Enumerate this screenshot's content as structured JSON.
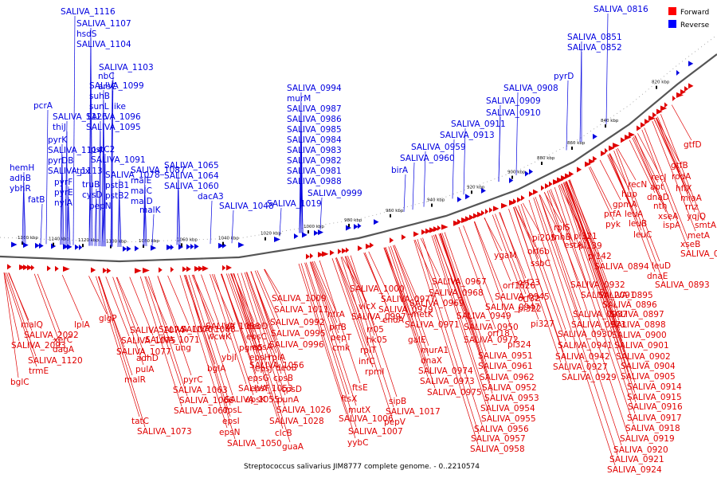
{
  "caption": "Streptococcus salivarius JIM8777 complete genome. - 0..2210574",
  "legend": [
    {
      "label": "Forward",
      "color": "#ff0000"
    },
    {
      "label": "Reverse",
      "color": "#0000ff"
    }
  ],
  "colors": {
    "forward": "#e00000",
    "reverse": "#0000e0",
    "backbone": "#555555"
  },
  "ticks": [
    "1160 kbp",
    "1140 kbp",
    "1120 kbp",
    "1100 kbp",
    "1080 kbp",
    "1060 kbp",
    "1040 kbp",
    "1020 kbp",
    "1000 kbp",
    "980 kbp",
    "960 kbp",
    "940 kbp",
    "920 kbp",
    "900 kbp",
    "880 kbp",
    "860 kbp",
    "840 kbp",
    "820 kbp"
  ],
  "reverse_labels": [
    "SALIVA_0816",
    "SALIVA_0851",
    "SALIVA_0852",
    "pyrD",
    "SALIVA_0908",
    "SALIVA_0909",
    "SALIVA_0910",
    "SALIVA_0911",
    "SALIVA_0913",
    "SALIVA_0959",
    "SALIVA_0960",
    "birA",
    "SALIVA_0994",
    "murM",
    "SALIVA_0987",
    "SALIVA_0986",
    "SALIVA_0985",
    "SALIVA_0984",
    "SALIVA_0983",
    "SALIVA_0982",
    "SALIVA_0981",
    "SALIVA_0988",
    "SALIVA_0999",
    "SALIVA_1019",
    "SALIVA_1048",
    "SALIVA_1065",
    "SALIVA_1064",
    "SALIVA_1060",
    "dacA3",
    "SALIVA_1116",
    "SALIVA_1107",
    "hsdS",
    "SALIVA_1104",
    "SALIVA_1103",
    "nbC",
    "arsC",
    "SALIVA_1099",
    "suhB",
    "sunL like",
    "SALIVA_1096",
    "SALIVA_1095",
    "pstC2",
    "SALIVA_1091",
    "SALIVA_1087",
    "malE",
    "malC",
    "malD",
    "malK",
    "SALIVA_1078",
    "pstB1",
    "pstB2",
    "pepN",
    "truB",
    "cysD",
    "tpx",
    "pcrA",
    "SALIVA_1126",
    "thiJ",
    "pyrK",
    "SALIVA_1114",
    "pyrDB",
    "SALIVA_1113",
    "pyrF",
    "pyrE",
    "nylA",
    "hemH",
    "adhB",
    "ybhR",
    "fatB"
  ],
  "forward_labels": [
    "gtfD",
    "gtfB",
    "rodA",
    "hflX",
    "miaA",
    "rnz",
    "yqjQ",
    "smtA",
    "metA",
    "xseB",
    "recJ",
    "apt",
    "dnaD",
    "nth",
    "xseA",
    "ispA",
    "SALIVA_0887",
    "recN",
    "hup",
    "gpmA",
    "leuA",
    "leuB",
    "leuC",
    "leuD",
    "dnaE",
    "SALIVA_0893",
    "prfA",
    "pyk",
    "estA",
    "rnhB",
    "rplS",
    "pi205",
    "orf6b",
    "ssbC",
    "ygaM",
    "orf23",
    "orf32",
    "pi322",
    "pi321",
    "pi139",
    "pi142",
    "SALIVA_0894",
    "SALIVA_0895",
    "SALIVA_0896",
    "SALIVA_0897",
    "SALIVA_0898",
    "SALIVA_0900",
    "SALIVA_0901",
    "SALIVA_0902",
    "SALIVA_0904",
    "SALIVA_0905",
    "SALIVA_0914",
    "SALIVA_0915",
    "SALIVA_0916",
    "SALIVA_0917",
    "SALIVA_0918",
    "SALIVA_0919",
    "SALIVA_0920",
    "SALIVA_0921",
    "SALIVA_0924",
    "SALIVA_0932",
    "SALIVA_2091",
    "SALIVA_0937",
    "SALIVA_0923",
    "SALIVA_0927",
    "SALIVA_0929",
    "SALIVA_0930",
    "SALIVA_0941",
    "SALIVA_0942",
    "orf18",
    "pi327",
    "pi324",
    "orf1626",
    "SALIVA_0945",
    "SALIVA_0947",
    "SALIVA_0949",
    "SALIVA_0950",
    "SALIVA_0951",
    "SALIVA_0961",
    "SALIVA_0962",
    "SALIVA_0952",
    "SALIVA_0953",
    "SALIVA_0954",
    "SALIVA_0955",
    "SALIVA_0956",
    "SALIVA_0957",
    "SALIVA_0958",
    "SALIVA_0967",
    "SALIVA_0968",
    "SALIVA_0969",
    "metK",
    "SALIVA_0971",
    "SALIVA_0972",
    "galE",
    "murA1",
    "dnaX",
    "SALIVA_0974",
    "SALIVA_0973",
    "SALIVA_0975",
    "SALIVA_0977",
    "SALIVA_0979",
    "endA",
    "rr05",
    "hk05",
    "vicX",
    "SALIVA_0997",
    "SALIVA_1000",
    "nfrA",
    "prfB",
    "pepT",
    "cmk",
    "rplT",
    "infC",
    "rpmI",
    "ftsE",
    "ftsX",
    "mutX",
    "SALIVA_1006",
    "SALIVA_1007",
    "yybC",
    "sipB",
    "SALIVA_1017",
    "pepV",
    "SALIVA_1009",
    "SALIVA_1011",
    "SALIVA_0992",
    "SALIVA_0995",
    "SALIVA_0996",
    "rpiA",
    "deoB",
    "cpsB",
    "cpsD",
    "punA",
    "SALIVA_1026",
    "SALIVA_1028",
    "clcB",
    "guaA",
    "deoD",
    "epsC",
    "epsA",
    "epsH",
    "epsJ",
    "epsG",
    "epsF",
    "epsK",
    "epsL",
    "epsI",
    "epsN",
    "SALIVA_1050",
    "SALIVA_1055",
    "SALIVA_1053",
    "SALIVA_1056",
    "pgm5",
    "ybjI",
    "glf",
    "wcwK",
    "SALIVA_1058",
    "bglA",
    "ung",
    "pyrC",
    "SALIVA_1063",
    "SALIVA_1066",
    "SALIVA_1067",
    "SALIVA_1068",
    "SALIVA_1070",
    "SALIVA_1071",
    "adhD",
    "pulA",
    "tatC",
    "SALIVA_1073",
    "SALIVA_1074",
    "SALIVA_1075",
    "SALIVA_1077",
    "malR",
    "glgP",
    "lplA",
    "malQ",
    "xerC",
    "dagA",
    "SALIVA_1120",
    "trmE",
    "bglC",
    "SALIVA_2092",
    "SALIVA_2093",
    "SALIVA_1121",
    "fbp",
    "dinF"
  ]
}
